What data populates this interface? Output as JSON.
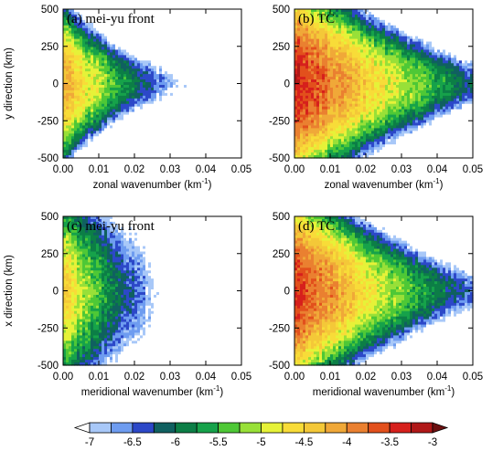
{
  "chart_data": {
    "type": "heatmap",
    "colorbar": {
      "levels": [
        "-7",
        "-6.5",
        "-6",
        "-5.5",
        "-5",
        "-4.5",
        "-4",
        "-3.5",
        "-3"
      ],
      "colors": [
        "#ffffff",
        "#a8c8f8",
        "#6e9cf0",
        "#2c48c8",
        "#106060",
        "#0c7e46",
        "#16a24a",
        "#4ec836",
        "#98e038",
        "#e6f238",
        "#f8dc38",
        "#f4c838",
        "#f0a838",
        "#ea8030",
        "#e2501c",
        "#d6201c",
        "#b01818",
        "#6c1010"
      ]
    },
    "panels": [
      {
        "id": "a",
        "label": "(a) mei-yu front",
        "xlabel": "zonal wavenumber (km",
        "xlabel_sup": "-1",
        "xlabel_end": ")",
        "ylabel": "y direction (km)",
        "xlim": [
          0,
          0.05
        ],
        "ylim": [
          -500,
          500
        ],
        "xticks": [
          "0.00",
          "0.01",
          "0.02",
          "0.03",
          "0.04",
          "0.05"
        ],
        "yticks": [
          "500",
          "250",
          "0",
          "-250",
          "-500"
        ],
        "field": {
          "max": -4.1,
          "decay": 38,
          "center_drop": 18,
          "width_mode": "funnel",
          "min_width": 0.08
        }
      },
      {
        "id": "b",
        "label": "(b) TC",
        "xlabel": "zonal wavenumber (km",
        "xlabel_sup": "-1",
        "xlabel_end": ")",
        "ylabel": "",
        "xlim": [
          0,
          0.05
        ],
        "ylim": [
          -500,
          500
        ],
        "xticks": [
          "0.00",
          "0.01",
          "0.02",
          "0.03",
          "0.04",
          "0.05"
        ],
        "yticks": [
          "500",
          "250",
          "0",
          "-250",
          "-500"
        ],
        "field": {
          "max": -3.3,
          "decay": 24,
          "center_drop": 4,
          "width_mode": "slow",
          "min_width": 0.34
        }
      },
      {
        "id": "c",
        "label": "(c) mei-yu front",
        "xlabel": "meridional wavenumber (km",
        "xlabel_sup": "-1",
        "xlabel_end": ")",
        "ylabel": "x direction (km)",
        "xlim": [
          0,
          0.05
        ],
        "ylim": [
          -500,
          500
        ],
        "xticks": [
          "0.00",
          "0.01",
          "0.02",
          "0.03",
          "0.04",
          "0.05"
        ],
        "yticks": [
          "500",
          "250",
          "0",
          "-250",
          "-500"
        ],
        "field": {
          "max": -4.4,
          "decay": 42,
          "center_drop": 0,
          "width_mode": "band",
          "min_width": 1.0
        }
      },
      {
        "id": "d",
        "label": "(d) TC",
        "xlabel": "meridional wavenumber (km",
        "xlabel_sup": "-1",
        "xlabel_end": ")",
        "ylabel": "",
        "xlim": [
          0,
          0.05
        ],
        "ylim": [
          -500,
          500
        ],
        "xticks": [
          "0.00",
          "0.01",
          "0.02",
          "0.03",
          "0.04",
          "0.05"
        ],
        "yticks": [
          "500",
          "250",
          "0",
          "-250",
          "-500"
        ],
        "field": {
          "max": -3.4,
          "decay": 26,
          "center_drop": 6,
          "width_mode": "slow",
          "min_width": 0.36
        }
      }
    ]
  }
}
